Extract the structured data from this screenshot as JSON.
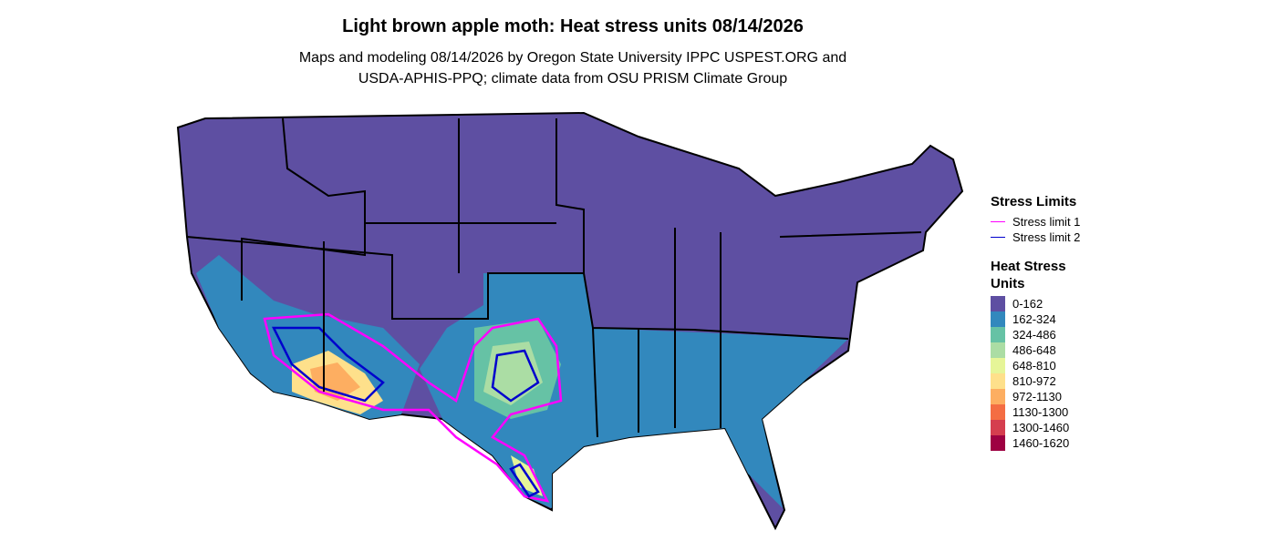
{
  "title": "Light brown apple moth: Heat stress units 08/14/2026",
  "subtitle": [
    "Maps and modeling 08/14/2026 by Oregon State University IPPC USPEST.ORG and",
    "USDA-APHIS-PPQ; climate data from OSU PRISM Climate Group"
  ],
  "stress_legend": {
    "title": "Stress Limits",
    "items": [
      {
        "label": "Stress limit 1",
        "color": "#ff00ff"
      },
      {
        "label": "Stress limit 2",
        "color": "#0000cd"
      }
    ]
  },
  "heat_legend": {
    "title": "Heat Stress Units",
    "items": [
      {
        "label": "0-162",
        "color": "#5e4fa2"
      },
      {
        "label": "162-324",
        "color": "#3288bd"
      },
      {
        "label": "324-486",
        "color": "#66c2a5"
      },
      {
        "label": "486-648",
        "color": "#abdda4"
      },
      {
        "label": "648-810",
        "color": "#e6f598"
      },
      {
        "label": "810-972",
        "color": "#fee08b"
      },
      {
        "label": "972-1130",
        "color": "#fdae61"
      },
      {
        "label": "1130-1300",
        "color": "#f46d43"
      },
      {
        "label": "1300-1460",
        "color": "#d53e4f"
      },
      {
        "label": "1460-1620",
        "color": "#9e0142"
      }
    ]
  }
}
